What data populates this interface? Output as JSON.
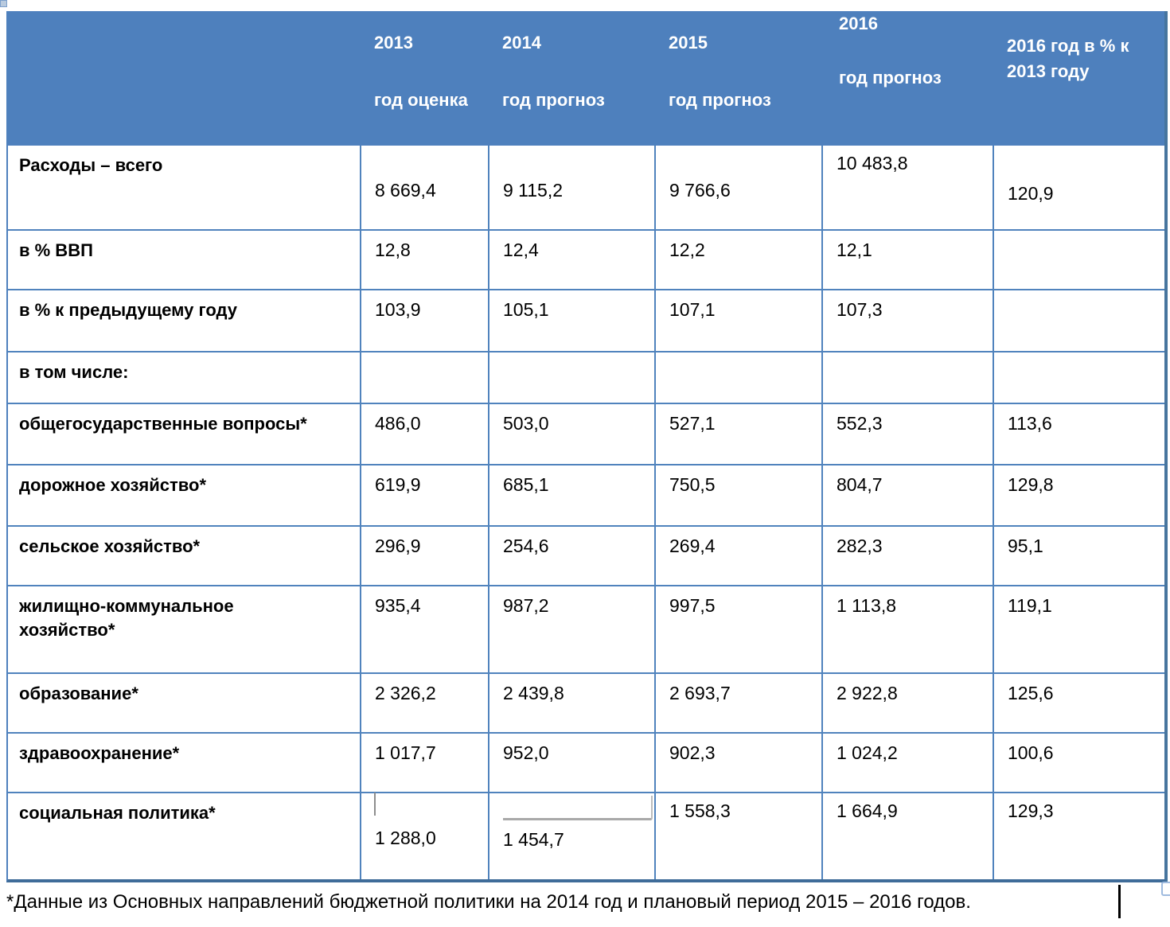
{
  "header": {
    "columns": [
      {
        "line1": "2013",
        "line2": "год оценка"
      },
      {
        "line1": "2014",
        "line2": "год прогноз"
      },
      {
        "line1": "2015",
        "line2": "год прогноз"
      },
      {
        "line1": "2016",
        "line2": "год прогноз"
      },
      {
        "line1": "2016 год в % к 2013 году",
        "line2": ""
      }
    ]
  },
  "rows": [
    {
      "label": "Расходы – всего",
      "values": [
        "8 669,4",
        "9 115,2",
        "9 766,6",
        "10 483,8",
        "120,9"
      ]
    },
    {
      "label": "в % ВВП",
      "values": [
        "12,8",
        "12,4",
        "12,2",
        "12,1",
        ""
      ]
    },
    {
      "label": "в % к предыдущему году",
      "values": [
        "103,9",
        "105,1",
        "107,1",
        "107,3",
        ""
      ]
    },
    {
      "label": "в том числе:",
      "values": [
        "",
        "",
        "",
        "",
        ""
      ]
    },
    {
      "label": "общегосударственные вопросы*",
      "values": [
        "486,0",
        "503,0",
        "527,1",
        "552,3",
        "113,6"
      ]
    },
    {
      "label": "дорожное хозяйство*",
      "values": [
        "619,9",
        "685,1",
        "750,5",
        "804,7",
        "129,8"
      ]
    },
    {
      "label": "сельское хозяйство*",
      "values": [
        "296,9",
        "254,6",
        "269,4",
        "282,3",
        "95,1"
      ]
    },
    {
      "label": "жилищно-коммунальное хозяйство*",
      "values": [
        "935,4",
        "987,2",
        "997,5",
        "1 113,8",
        "119,1"
      ]
    },
    {
      "label": "образование*",
      "values": [
        "2 326,2",
        "2 439,8",
        "2 693,7",
        "2 922,8",
        "125,6"
      ]
    },
    {
      "label": "здравоохранение*",
      "values": [
        "1 017,7",
        "952,0",
        "902,3",
        "1 024,2",
        "100,6"
      ]
    },
    {
      "label": "социальная политика*",
      "values": [
        "1 288,0",
        "1 454,7",
        "1 558,3",
        "1 664,9",
        "129,3"
      ]
    }
  ],
  "footnote": "*Данные из Основных направлений бюджетной политики на 2014 год и плановый период 2015 – 2016 годов.",
  "colors": {
    "header_bg": "#4e80bd",
    "header_text": "#ffffff",
    "inner_border": "#5083bd",
    "outer_border": "#3f6c99",
    "body_text": "#000000"
  }
}
